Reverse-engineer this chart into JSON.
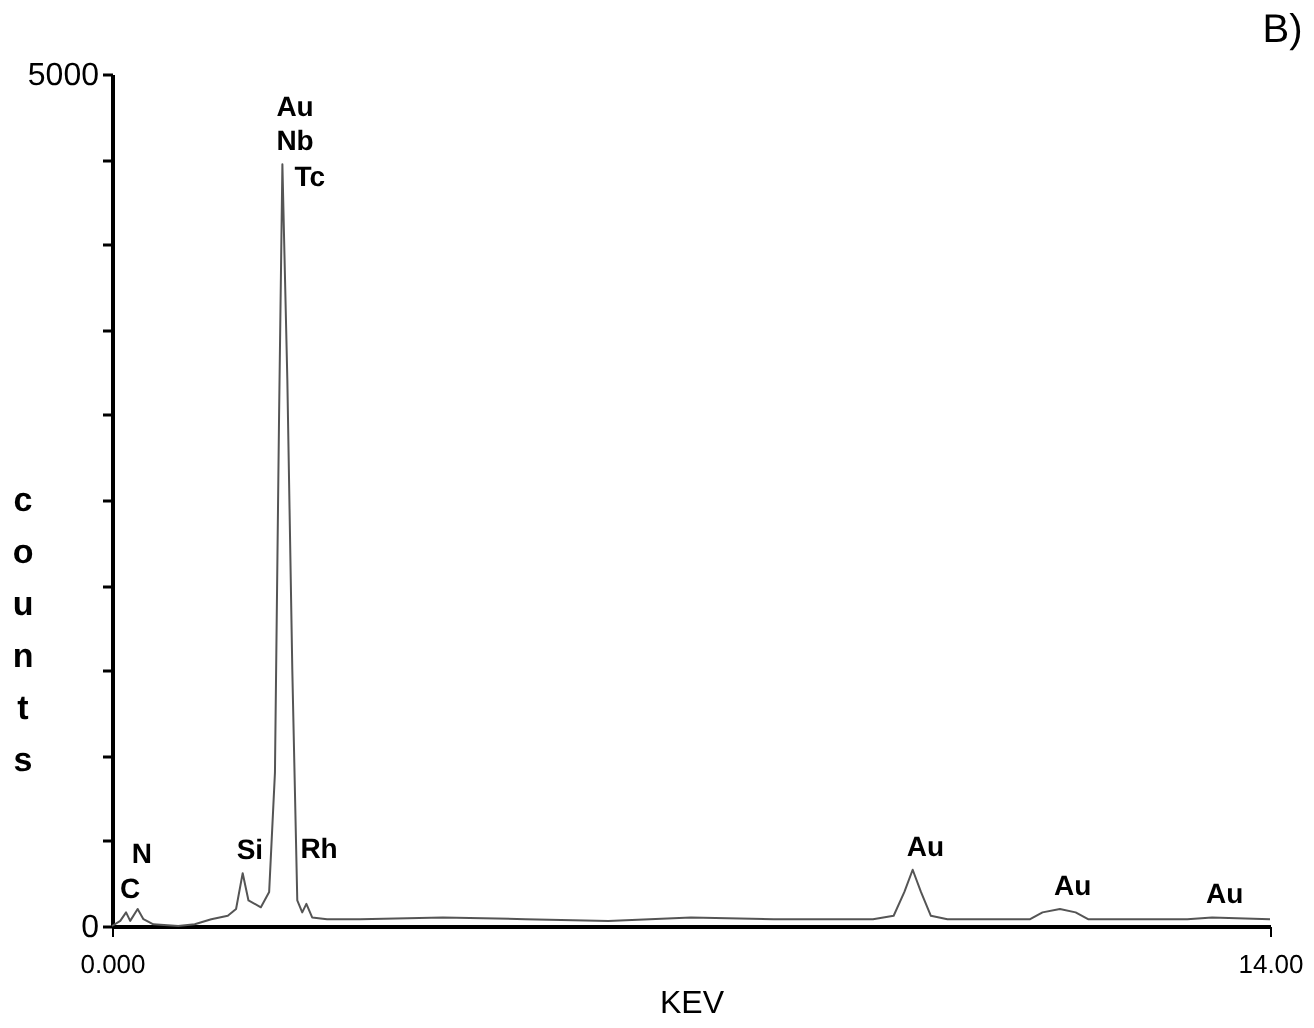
{
  "chart_data": {
    "type": "line",
    "title": "B)",
    "xlabel": "KEV",
    "ylabel": "counts",
    "x": [
      0,
      0.1,
      0.17,
      0.22,
      0.31,
      0.38,
      0.5,
      0.8,
      1.0,
      1.2,
      1.4,
      1.5,
      1.58,
      1.65,
      1.8,
      1.9,
      1.97,
      2.02,
      2.06,
      2.12,
      2.18,
      2.24,
      2.3,
      2.35,
      2.42,
      2.6,
      3.0,
      4.0,
      5.0,
      6.0,
      7.0,
      8.0,
      9.2,
      9.45,
      9.58,
      9.68,
      9.78,
      9.9,
      10.1,
      11.1,
      11.25,
      11.46,
      11.65,
      11.8,
      13.0,
      13.3,
      14
    ],
    "series": [
      {
        "color": "#555555",
        "values": [
          0,
          30,
          80,
          30,
          100,
          40,
          10,
          0,
          10,
          40,
          60,
          100,
          310,
          150,
          110,
          200,
          900,
          3000,
          4470,
          3200,
          1500,
          150,
          80,
          130,
          50,
          40,
          40,
          50,
          40,
          30,
          50,
          40,
          40,
          60,
          200,
          330,
          200,
          60,
          40,
          40,
          80,
          100,
          80,
          40,
          40,
          50,
          40
        ]
      }
    ],
    "xlim": [
      0,
      14
    ],
    "xticks": [
      {
        "value": 0,
        "label": "0.000"
      },
      {
        "value": 14,
        "label": "14.00"
      }
    ],
    "ylim": [
      0,
      5000
    ],
    "yticks": [
      0,
      {
        "value": 500,
        "label": null
      },
      {
        "value": 1000,
        "label": null
      },
      {
        "value": 1500,
        "label": null
      },
      {
        "value": 2000,
        "label": null
      },
      {
        "value": 2500,
        "label": null
      },
      {
        "value": 3000,
        "label": null
      },
      {
        "value": 3500,
        "label": null
      },
      {
        "value": 4000,
        "label": null
      },
      {
        "value": 4500,
        "label": null
      },
      5000
    ],
    "grid": false,
    "legend": false,
    "marker": "none",
    "line_style": "solid",
    "annotations": [
      {
        "text": "Au",
        "x": 2.06,
        "y": 4470
      },
      {
        "text": "Nb",
        "x": 2.06,
        "y": 4470
      },
      {
        "text": "Tc",
        "x": 2.06,
        "y": 4470
      },
      {
        "text": "C",
        "x": 0.17,
        "y": 80
      },
      {
        "text": "N",
        "x": 0.31,
        "y": 100
      },
      {
        "text": "Si",
        "x": 1.58,
        "y": 310
      },
      {
        "text": "Rh",
        "x": 2.35,
        "y": 130
      },
      {
        "text": "Au",
        "x": 9.68,
        "y": 330
      },
      {
        "text": "Au",
        "x": 11.46,
        "y": 100
      },
      {
        "text": "Au",
        "x": 13.3,
        "y": 50
      }
    ]
  }
}
